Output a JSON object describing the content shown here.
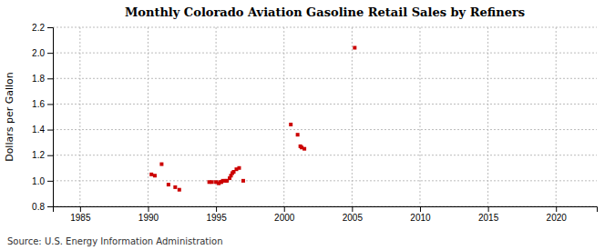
{
  "chart_data": {
    "type": "scatter",
    "title": "Monthly Colorado Aviation Gasoline Retail Sales by Refiners",
    "ylabel": "Dollars per Gallon",
    "source": "Source: U.S. Energy Information Administration",
    "color": "#cc0000",
    "marker": "square",
    "grid": true,
    "xlim": [
      1983,
      2023
    ],
    "ylim": [
      0.8,
      2.2
    ],
    "xticks": [
      1985,
      1990,
      1995,
      2000,
      2005,
      2010,
      2015,
      2020
    ],
    "yticks": [
      0.8,
      {
        "value": 1.0,
        "label": "1.0"
      },
      1.2,
      1.4,
      1.6,
      1.8,
      {
        "value": 2.0,
        "label": "2.0"
      },
      2.2
    ],
    "x": [
      1990.25,
      1990.5,
      1991.0,
      1991.5,
      1992.0,
      1992.3,
      1994.5,
      1994.7,
      1995.0,
      1995.2,
      1995.3,
      1995.4,
      1995.5,
      1995.7,
      1995.8,
      1996.0,
      1996.1,
      1996.2,
      1996.3,
      1996.5,
      1996.7,
      1997.0,
      2000.5,
      2001.0,
      2001.2,
      2001.3,
      2001.5,
      2005.2
    ],
    "values": [
      1.05,
      1.04,
      1.13,
      0.97,
      0.95,
      0.93,
      0.99,
      0.99,
      0.99,
      0.98,
      0.99,
      0.99,
      1.0,
      1.0,
      1.0,
      1.02,
      1.04,
      1.06,
      1.07,
      1.09,
      1.1,
      1.0,
      1.44,
      1.36,
      1.27,
      1.26,
      1.25,
      2.04
    ]
  }
}
